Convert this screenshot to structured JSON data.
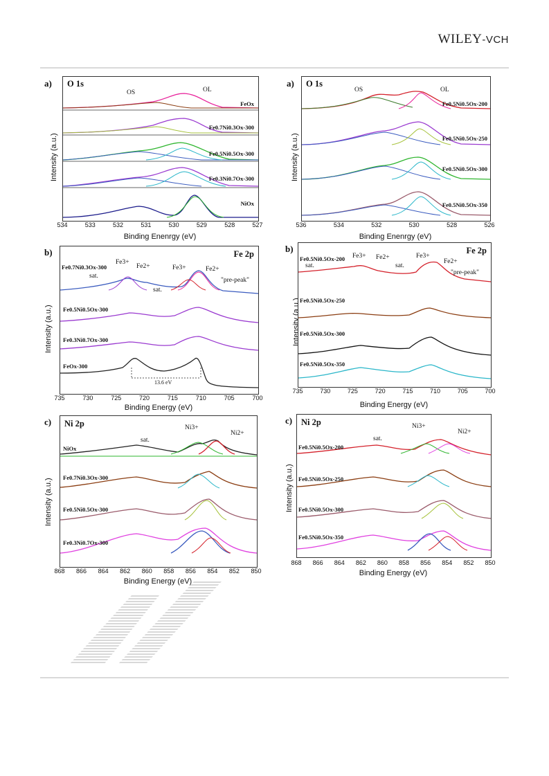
{
  "header": {
    "logo_main": "WILEY",
    "logo_suffix": "-VCH"
  },
  "axis": {
    "intensity": "Intensity (a.u.)",
    "binding_enenrgy": "Binding Enenrgy (eV)",
    "binding_energy": "Binding Energy (eV)"
  },
  "panels": {
    "o1s_left": {
      "label": "a)",
      "title": "O 1s",
      "ticks": [
        "534",
        "533",
        "532",
        "531",
        "530",
        "529",
        "528",
        "527"
      ],
      "traces": [
        "FeOx",
        "Fe0.7Ni0.3Ox-300",
        "Fe0.5Ni0.5Ox-300",
        "Fe0.3Ni0.7Ox-300",
        "NiOx"
      ],
      "annotations": {
        "os": "OS",
        "ol": "OL"
      }
    },
    "o1s_right": {
      "label": "a)",
      "title": "O 1s",
      "ticks": [
        "536",
        "534",
        "532",
        "530",
        "528",
        "526"
      ],
      "traces": [
        "Fe0.5Ni0.5Ox-200",
        "Fe0.5Ni0.5Ox-250",
        "Fe0.5Ni0.5Ox-300",
        "Fe0.5Ni0.5Ox-350"
      ],
      "annotations": {
        "os": "OS",
        "ol": "OL"
      }
    },
    "fe2p_left": {
      "label": "b)",
      "title": "Fe 2p",
      "ticks": [
        "735",
        "730",
        "725",
        "720",
        "715",
        "710",
        "705",
        "700"
      ],
      "traces": [
        "Fe0.7Ni0.3Ox-300",
        "Fe0.5Ni0.5Ox-300",
        "Fe0.3Ni0.7Ox-300",
        "FeOx-300"
      ],
      "annotations": {
        "fe3_a": "Fe3+",
        "fe2_a": "Fe2+",
        "fe3_b": "Fe3+",
        "fe2_b": "Fe2+",
        "sat1": "sat.",
        "sat2": "sat.",
        "prepeak": "\"pre-peak\"",
        "gap": "13.6 eV"
      }
    },
    "fe2p_right": {
      "label": "b)",
      "title": "Fe 2p",
      "ticks": [
        "735",
        "730",
        "725",
        "720",
        "715",
        "710",
        "705",
        "700"
      ],
      "traces": [
        "Fe0.5Ni0.5Ox-200",
        "Fe0.5Ni0.5Ox-250",
        "Fe0.5Ni0.5Ox-300",
        "Fe0.5Ni0.5Ox-350"
      ],
      "annotations": {
        "fe3_a": "Fe3+",
        "fe2_a": "Fe2+",
        "fe3_b": "Fe3+",
        "fe2_b": "Fe2+",
        "sat1": "sat.",
        "sat2": "sat.",
        "prepeak": "\"pre-peak\""
      }
    },
    "ni2p_left": {
      "label": "c)",
      "title": "Ni 2p",
      "ticks": [
        "868",
        "866",
        "864",
        "862",
        "860",
        "858",
        "856",
        "854",
        "852",
        "850"
      ],
      "traces": [
        "NiOx",
        "Fe0.7Ni0.3Ox-300",
        "Fe0.5Ni0.5Ox-300",
        "Fe0.3Ni0.7Ox-300"
      ],
      "annotations": {
        "sat": "sat.",
        "ni3": "Ni3+",
        "ni2": "Ni2+"
      }
    },
    "ni2p_right": {
      "label": "c)",
      "title": "Ni 2p",
      "ticks": [
        "868",
        "866",
        "864",
        "862",
        "860",
        "858",
        "856",
        "854",
        "852",
        "850"
      ],
      "traces": [
        "Fe0.5Ni0.5Ox-200",
        "Fe0.5Ni0.5Ox-250",
        "Fe0.5Ni0.5Ox-300",
        "Fe0.5Ni0.5Ox-350"
      ],
      "annotations": {
        "sat": "sat.",
        "ni3": "Ni3+",
        "ni2": "Ni2+"
      }
    }
  },
  "colors": {
    "os": "#8a3c10",
    "ol": "#e8209a",
    "fit1": "#3a5bbf",
    "fit2": "#29b6c9",
    "fit3": "#a6c23a",
    "fit4": "#9a3ad0",
    "fit5": "#2db52d",
    "raw_dark": "#222222",
    "raw_red": "#d4202a"
  }
}
